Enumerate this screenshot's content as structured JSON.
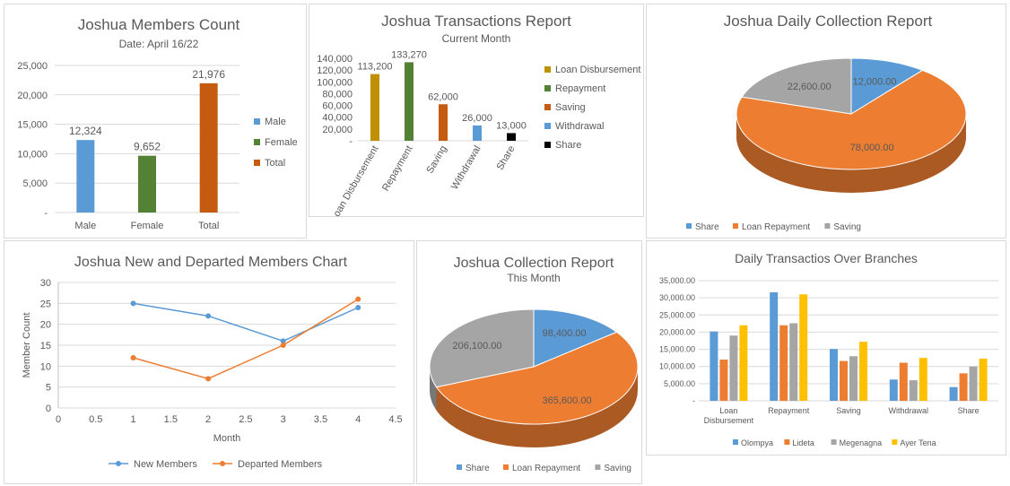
{
  "charts": {
    "members": {
      "type": "bar",
      "title": "Joshua Members Count",
      "subtitle": "Date: April 16/22",
      "categories": [
        "Male",
        "Female",
        "Total"
      ],
      "values": [
        12324,
        9652,
        21976
      ],
      "value_labels": [
        "12,324",
        "9,652",
        "21,976"
      ],
      "colors": [
        "#5b9bd5",
        "#548235",
        "#c55a11"
      ],
      "legend": [
        "Male",
        "Female",
        "Total"
      ],
      "ylim": [
        0,
        25000
      ],
      "yticks": [
        0,
        5000,
        10000,
        15000,
        20000,
        25000
      ],
      "ytick_labels": [
        "-",
        "5,000",
        "10,000",
        "15,000",
        "20,000",
        "25,000"
      ],
      "legend_position": "right",
      "grid": true
    },
    "transactions": {
      "type": "bar",
      "title": "Joshua Transactions Report",
      "subtitle": "Current Month",
      "categories": [
        "Loan Disbursement",
        "Repayment",
        "Saving",
        "Withdrawal",
        "Share"
      ],
      "values": [
        113200,
        133270,
        62000,
        26000,
        13000
      ],
      "value_labels": [
        "113,200",
        "133,270",
        "62,000",
        "26,000",
        "13,000"
      ],
      "colors": [
        "#bf9000",
        "#548235",
        "#c55a11",
        "#5b9bd5",
        "#000000"
      ],
      "legend": [
        "Loan Disbursement",
        "Repayment",
        "Saving",
        "Withdrawal",
        "Share"
      ],
      "ylim": [
        0,
        140000
      ],
      "yticks": [
        0,
        20000,
        40000,
        60000,
        80000,
        100000,
        120000,
        140000
      ],
      "ytick_labels": [
        "-",
        "20,000",
        "40,000",
        "60,000",
        "80,000",
        "100,000",
        "120,000",
        "140,000"
      ],
      "legend_position": "right",
      "grid": false
    },
    "daily_collection": {
      "type": "pie",
      "title": "Joshua Daily Collection Report",
      "labels": [
        "Share",
        "Loan Repayment",
        "Saving"
      ],
      "values": [
        12000,
        78000,
        22600
      ],
      "value_labels": [
        "12,000.00",
        "78,000.00",
        "22,600.00"
      ],
      "colors": [
        "#5b9bd5",
        "#ed7d31",
        "#a5a5a5"
      ],
      "legend_position": "bottom"
    },
    "members_line": {
      "type": "line",
      "title": "Joshua New and Departed Members Chart",
      "xlabel": "Month",
      "ylabel": "Member Count",
      "xlim": [
        0,
        4.5
      ],
      "xticks": [
        0,
        0.5,
        1,
        1.5,
        2,
        2.5,
        3,
        3.5,
        4,
        4.5
      ],
      "xtick_labels": [
        "0",
        "0.5",
        "1",
        "1.5",
        "2",
        "2.5",
        "3",
        "3.5",
        "4",
        "4.5"
      ],
      "ylim": [
        0,
        30
      ],
      "yticks": [
        0,
        5,
        10,
        15,
        20,
        25,
        30
      ],
      "ytick_labels": [
        "0",
        "5",
        "10",
        "15",
        "20",
        "25",
        "30"
      ],
      "series": [
        {
          "name": "New Members",
          "color": "#5b9bd5",
          "x": [
            1,
            2,
            3,
            4
          ],
          "y": [
            25,
            22,
            16,
            24
          ]
        },
        {
          "name": "Departed Members",
          "color": "#ed7d31",
          "x": [
            1,
            2,
            3,
            4
          ],
          "y": [
            12,
            7,
            15,
            26
          ]
        }
      ],
      "legend_position": "bottom",
      "grid": true
    },
    "collection": {
      "type": "pie",
      "title": "Joshua Collection Report",
      "subtitle": "This Month",
      "labels": [
        "Share",
        "Loan Repayment",
        "Saving"
      ],
      "values": [
        98400,
        365600,
        206100
      ],
      "value_labels": [
        "98,400.00",
        "365,600.00",
        "206,100.00"
      ],
      "colors": [
        "#5b9bd5",
        "#ed7d31",
        "#a5a5a5"
      ],
      "legend_position": "bottom"
    },
    "branches": {
      "type": "bar",
      "title": "Daily Transactios Over Branches",
      "categories": [
        [
          "Loan",
          "Disbursement"
        ],
        [
          "Repayment"
        ],
        [
          "Saving"
        ],
        [
          "Withdrawal"
        ],
        [
          "Share"
        ]
      ],
      "series": [
        {
          "name": "Olompya",
          "color": "#5b9bd5",
          "values": [
            20200,
            31600,
            15100,
            6200,
            4000
          ]
        },
        {
          "name": "Lideta",
          "color": "#ed7d31",
          "values": [
            12000,
            22000,
            11600,
            11100,
            8000
          ]
        },
        {
          "name": "Megenagna",
          "color": "#a5a5a5",
          "values": [
            19000,
            22600,
            13000,
            6000,
            10000
          ]
        },
        {
          "name": "Ayer Tena",
          "color": "#ffc000",
          "values": [
            22000,
            31000,
            17200,
            12500,
            12300
          ]
        }
      ],
      "ylim": [
        0,
        35000
      ],
      "yticks": [
        0,
        5000,
        10000,
        15000,
        20000,
        25000,
        30000,
        35000
      ],
      "ytick_labels": [
        "-",
        "5,000.00",
        "10,000.00",
        "15,000.00",
        "20,000.00",
        "25,000.00",
        "30,000.00",
        "35,000.00"
      ],
      "legend_position": "bottom",
      "grid": true
    }
  }
}
